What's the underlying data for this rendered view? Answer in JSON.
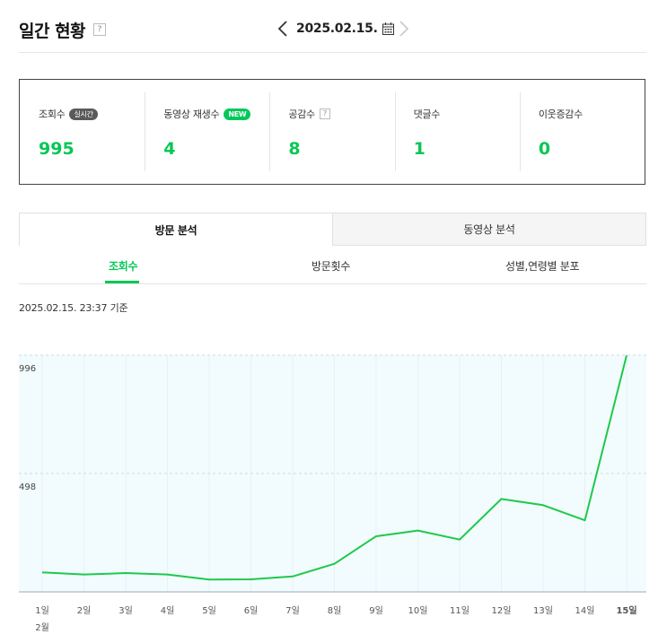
{
  "header": {
    "title": "일간 현황",
    "help": "?",
    "date": "2025.02.15.",
    "prev_icon": "chevron-left-icon",
    "next_icon": "chevron-right-icon",
    "calendar_icon": "calendar-icon"
  },
  "stats": [
    {
      "label": "조회수",
      "badge": "실시간",
      "badge_style": "gray",
      "value": "995"
    },
    {
      "label": "동영상 재생수",
      "badge": "NEW",
      "badge_style": "green",
      "value": "4"
    },
    {
      "label": "공감수",
      "badge": "?",
      "badge_style": "help",
      "value": "8"
    },
    {
      "label": "댓글수",
      "badge": "",
      "badge_style": "",
      "value": "1"
    },
    {
      "label": "이웃증감수",
      "badge": "",
      "badge_style": "",
      "value": "0"
    }
  ],
  "main_tabs": [
    {
      "label": "방문 분석",
      "active": true
    },
    {
      "label": "동영상 분석",
      "active": false
    }
  ],
  "sub_tabs": [
    {
      "label": "조회수",
      "active": true
    },
    {
      "label": "방문횟수",
      "active": false
    },
    {
      "label": "성별,연령별 분포",
      "active": false
    }
  ],
  "as_of": "2025.02.15. 23:37 기준",
  "colors": {
    "accent": "#06c755",
    "line": "#1ec94c",
    "fill": "#f2fbfd"
  },
  "chart_data": {
    "type": "line",
    "x": [
      "1일",
      "2일",
      "3일",
      "4일",
      "5일",
      "6일",
      "7일",
      "8일",
      "9일",
      "10일",
      "11일",
      "12일",
      "13일",
      "14일",
      "15일"
    ],
    "x_month_label": "2월",
    "highlight_x": "15일",
    "series": [
      {
        "values": [
          82,
          73,
          79,
          73,
          52,
          53,
          65,
          118,
          234,
          258,
          220,
          391,
          365,
          301,
          995
        ]
      }
    ],
    "y_ticks": [
      498,
      996
    ],
    "ylim": [
      0,
      996
    ],
    "grid": "horizontal dashed + vertical light"
  }
}
